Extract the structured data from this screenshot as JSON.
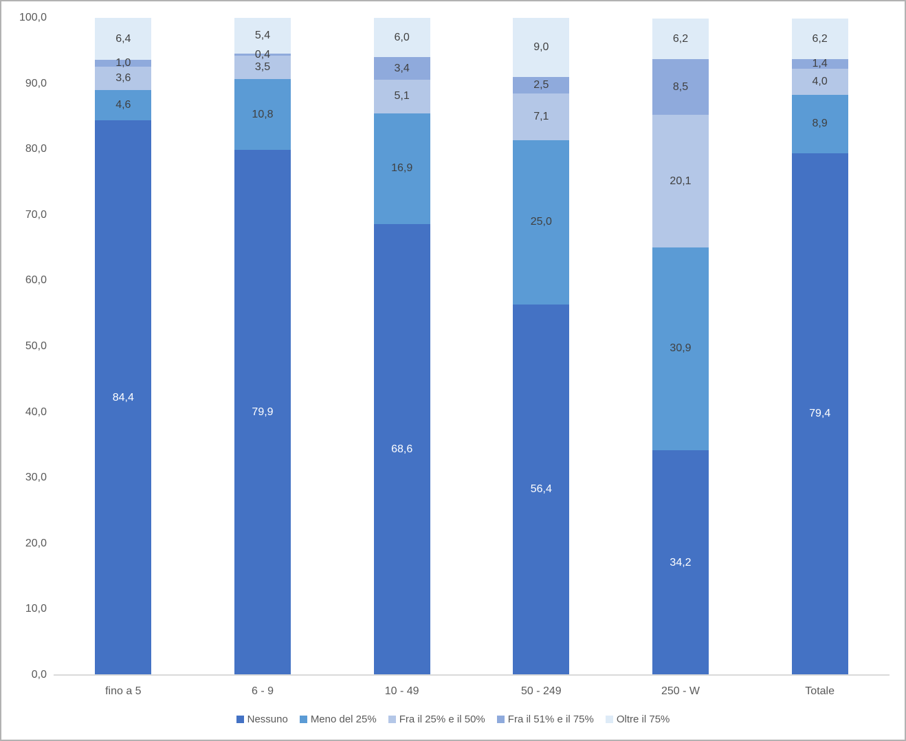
{
  "chart_data": {
    "type": "bar",
    "variant": "stacked-100-percent",
    "title": "",
    "xlabel": "",
    "ylabel": "",
    "categories": [
      "fino a 5",
      "6 - 9",
      "10 - 49",
      "50 - 249",
      "250 - W",
      "Totale"
    ],
    "series": [
      {
        "name": "Nessuno",
        "color": "#4472C4",
        "label_color": "#FFFFFF",
        "values": [
          84.4,
          79.9,
          68.6,
          56.4,
          34.2,
          79.4
        ]
      },
      {
        "name": "Meno del 25%",
        "color": "#5B9BD5",
        "label_color": "#404040",
        "values": [
          4.6,
          10.8,
          16.9,
          25.0,
          30.9,
          8.9
        ]
      },
      {
        "name": "Fra il 25% e il 50%",
        "color": "#B4C7E7",
        "label_color": "#404040",
        "values": [
          3.6,
          3.5,
          5.1,
          7.1,
          20.1,
          4.0
        ]
      },
      {
        "name": "Fra il 51% e il 75%",
        "color": "#8FAADC",
        "label_color": "#404040",
        "values": [
          1.0,
          0.4,
          3.4,
          2.5,
          8.5,
          1.4
        ]
      },
      {
        "name": "Oltre il 75%",
        "color": "#DEEBF7",
        "label_color": "#404040",
        "values": [
          6.4,
          5.4,
          6.0,
          9.0,
          6.2,
          6.2
        ]
      }
    ],
    "data_labels": {
      "shown": true,
      "decimal_separator": ",",
      "decimals": 1
    },
    "ylim": [
      0,
      100
    ],
    "ytick_values": [
      0,
      10,
      20,
      30,
      40,
      50,
      60,
      70,
      80,
      90,
      100
    ],
    "ytick_labels": [
      "0,0",
      "10,0",
      "20,0",
      "30,0",
      "40,0",
      "50,0",
      "60,0",
      "70,0",
      "80,0",
      "90,0",
      "100,0"
    ],
    "grid": false,
    "legend_position": "bottom",
    "axis_text_color": "#595959",
    "data_label_text_color": "#404040",
    "axis_line_color": "#D9D9D9",
    "background_color": "#FFFFFF",
    "frame_border_color": "#B2B2B2"
  }
}
